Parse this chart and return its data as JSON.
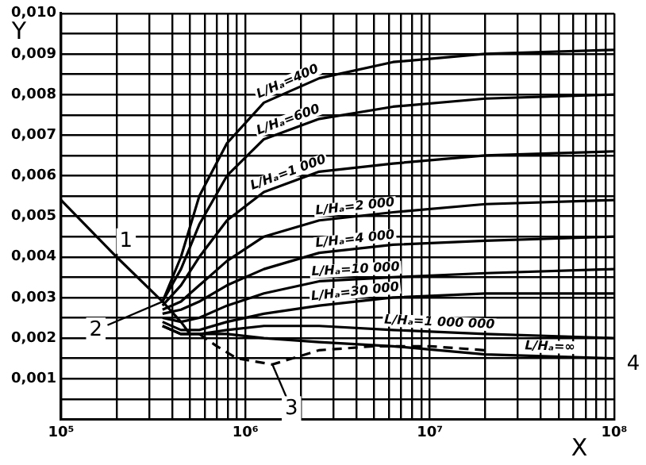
{
  "chart_data": {
    "type": "line",
    "xlabel": "X",
    "ylabel": "Y",
    "log": "x",
    "grid": true,
    "legend": false,
    "marker": "none",
    "xlim": [
      100000,
      100000000
    ],
    "xticks": [
      {
        "value": 100000,
        "label": "10⁵"
      },
      {
        "value": 200000,
        "label": null
      },
      {
        "value": 300000,
        "label": null
      },
      {
        "value": 400000,
        "label": null
      },
      {
        "value": 500000,
        "label": null
      },
      {
        "value": 600000,
        "label": null
      },
      {
        "value": 700000,
        "label": null
      },
      {
        "value": 800000,
        "label": null
      },
      {
        "value": 900000,
        "label": null
      },
      {
        "value": 1000000,
        "label": "10⁶"
      },
      {
        "value": 2000000,
        "label": null
      },
      {
        "value": 3000000,
        "label": null
      },
      {
        "value": 4000000,
        "label": null
      },
      {
        "value": 5000000,
        "label": null
      },
      {
        "value": 6000000,
        "label": null
      },
      {
        "value": 7000000,
        "label": null
      },
      {
        "value": 8000000,
        "label": null
      },
      {
        "value": 9000000,
        "label": null
      },
      {
        "value": 10000000,
        "label": "10⁷"
      },
      {
        "value": 20000000,
        "label": null
      },
      {
        "value": 30000000,
        "label": null
      },
      {
        "value": 40000000,
        "label": null
      },
      {
        "value": 50000000,
        "label": null
      },
      {
        "value": 60000000,
        "label": null
      },
      {
        "value": 70000000,
        "label": null
      },
      {
        "value": 80000000,
        "label": null
      },
      {
        "value": 90000000,
        "label": null
      },
      {
        "value": 100000000,
        "label": "10⁸"
      }
    ],
    "ylim": [
      0,
      0.01
    ],
    "yticks": [
      {
        "value": 0,
        "label": null
      },
      {
        "value": 0.0005,
        "label": null
      },
      {
        "value": 0.001,
        "label": "0,001"
      },
      {
        "value": 0.0015,
        "label": null
      },
      {
        "value": 0.002,
        "label": "0,002"
      },
      {
        "value": 0.0025,
        "label": null
      },
      {
        "value": 0.003,
        "label": "0,003"
      },
      {
        "value": 0.0035,
        "label": null
      },
      {
        "value": 0.004,
        "label": "0,004"
      },
      {
        "value": 0.0045,
        "label": null
      },
      {
        "value": 0.005,
        "label": "0,005"
      },
      {
        "value": 0.0055,
        "label": null
      },
      {
        "value": 0.006,
        "label": "0,006"
      },
      {
        "value": 0.0065,
        "label": null
      },
      {
        "value": 0.007,
        "label": "0,007"
      },
      {
        "value": 0.0075,
        "label": null
      },
      {
        "value": 0.008,
        "label": "0,008"
      },
      {
        "value": 0.0085,
        "label": null
      },
      {
        "value": 0.009,
        "label": "0,009"
      },
      {
        "value": 0.0095,
        "label": null
      },
      {
        "value": 0.01,
        "label": "0,010"
      }
    ],
    "x": [
      355000,
      447000,
      562000,
      794000,
      1259000,
      2512000,
      6310000,
      19950000,
      100000000
    ],
    "series": [
      {
        "name": "L/Hₐ=400",
        "color": "#000000",
        "values": [
          0.0029,
          0.004,
          0.0055,
          0.0068,
          0.0078,
          0.0084,
          0.0088,
          0.009,
          0.0091
        ]
      },
      {
        "name": "L/Hₐ=600",
        "color": "#000000",
        "values": [
          0.0029,
          0.0037,
          0.0048,
          0.006,
          0.0069,
          0.0074,
          0.0077,
          0.0079,
          0.008
        ]
      },
      {
        "name": "L/Hₐ=1 000",
        "color": "#000000",
        "values": [
          0.0028,
          0.0033,
          0.004,
          0.0049,
          0.0056,
          0.0061,
          0.0063,
          0.0065,
          0.0066
        ]
      },
      {
        "name": "L/Hₐ=2 000",
        "color": "#000000",
        "values": [
          0.0027,
          0.0029,
          0.0033,
          0.0039,
          0.0045,
          0.0049,
          0.0051,
          0.0053,
          0.0054
        ]
      },
      {
        "name": "L/Hₐ=4 000",
        "color": "#000000",
        "values": [
          0.0026,
          0.0027,
          0.0029,
          0.0033,
          0.0037,
          0.0041,
          0.0043,
          0.0044,
          0.0045
        ]
      },
      {
        "name": "L/Hₐ=10 000",
        "color": "#000000",
        "values": [
          0.0025,
          0.0024,
          0.0025,
          0.0028,
          0.0031,
          0.0034,
          0.0035,
          0.0036,
          0.0037
        ]
      },
      {
        "name": "L/Hₐ=30 000",
        "color": "#000000",
        "values": [
          0.0024,
          0.0022,
          0.0022,
          0.0024,
          0.0026,
          0.0028,
          0.003,
          0.0031,
          0.0031
        ]
      },
      {
        "name": "L/Hₐ=1 000 000",
        "color": "#000000",
        "values": [
          0.0023,
          0.0021,
          0.0021,
          0.0022,
          0.0023,
          0.0023,
          0.0022,
          0.0021,
          0.002
        ]
      },
      {
        "name": "L/Hₐ=∞",
        "color": "#000000",
        "values": [
          0.0023,
          0.0021,
          0.0021,
          0.0021,
          0.002,
          0.0019,
          0.0018,
          0.0016,
          0.0015
        ]
      },
      {
        "color": "#000000",
        "x": [
          100000,
          200000,
          355000,
          447000,
          500000
        ],
        "values": [
          0.0054,
          0.004,
          0.0029,
          0.0024,
          0.0021
        ]
      },
      {
        "color": "#000000",
        "line_style": "dashed",
        "x": [
          562000,
          700000,
          900000,
          1400000,
          2500000,
          5000000,
          10000000,
          20000000
        ],
        "values": [
          0.0021,
          0.0018,
          0.0015,
          0.00135,
          0.0017,
          0.0018,
          0.0018,
          0.0017
        ]
      }
    ],
    "annotations": [
      {
        "text": "1",
        "x": 200000,
        "y": 0.004
      },
      {
        "text": "2",
        "x": 355000,
        "y": 0.0029
      },
      {
        "text": "3",
        "x": 1400000,
        "y": 0.00135
      },
      {
        "text": "4",
        "x": 100000000,
        "y": 0.0015
      }
    ]
  }
}
